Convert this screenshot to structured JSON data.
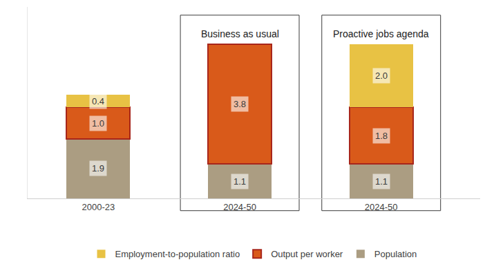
{
  "chart_data": {
    "type": "bar",
    "stacked": true,
    "data_labels": true,
    "legend": "bottom",
    "grid": false,
    "tick_labels": "x",
    "categories": [
      "2000-23",
      "2024-50",
      "2024-50"
    ],
    "ylim": [
      0,
      6.1
    ],
    "yticks": [],
    "series": [
      {
        "name": "Population",
        "color": "#ab9d82",
        "values": [
          1.9,
          1.1,
          1.1
        ],
        "value_labels": [
          "1.9",
          "1.1",
          "1.1"
        ]
      },
      {
        "name": "Output per worker",
        "color": "#d95a1a",
        "values": [
          1.0,
          3.8,
          1.8
        ],
        "value_labels": [
          "1.0",
          "3.8",
          "1.8"
        ]
      },
      {
        "name": "Employment-to-population ratio",
        "color": "#e8c244",
        "values": [
          0.4,
          null,
          2.0
        ],
        "value_labels": [
          "0.4",
          null,
          "2.0"
        ]
      }
    ],
    "annotations": [
      {
        "text": "Business as usual",
        "x": 1
      },
      {
        "text": "Proactive jobs agenda",
        "x": 2
      }
    ]
  }
}
